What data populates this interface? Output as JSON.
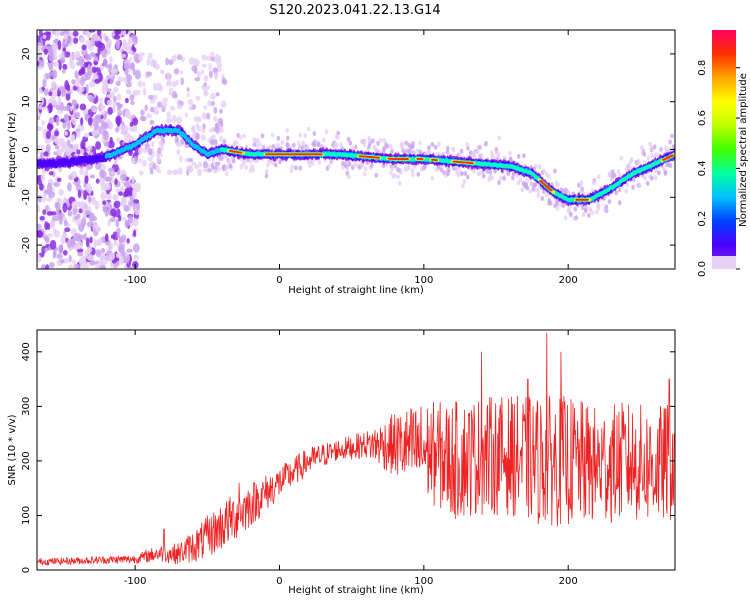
{
  "title": "S120.2023.041.22.13.G14",
  "chart_data": [
    {
      "type": "heatmap",
      "title": "S120.2023.041.22.13.G14",
      "xlabel": "Height of straight line (km)",
      "ylabel": "Frequency (Hz)",
      "xlim": [
        -168,
        274
      ],
      "ylim": [
        -25,
        25
      ],
      "x_ticks": [
        -100,
        0,
        100,
        200
      ],
      "y_ticks": [
        -20,
        -10,
        0,
        10,
        20
      ],
      "colorbar": {
        "label": "Normalized spectral amplitude",
        "range": [
          0,
          0.95
        ],
        "ticks": [
          0.0,
          0.2,
          0.4,
          0.6,
          0.8
        ],
        "colors": [
          "#e6d0f5",
          "#c9a3ee",
          "#8a2be2",
          "#4b00ff",
          "#0040ff",
          "#00c0ff",
          "#00ffc0",
          "#40ff00",
          "#c0ff00",
          "#ffff00",
          "#ffa500",
          "#ff3000",
          "#ff0060"
        ]
      },
      "ridge": [
        {
          "x": -160,
          "y": -3
        },
        {
          "x": -140,
          "y": -2.5
        },
        {
          "x": -120,
          "y": -1.5
        },
        {
          "x": -100,
          "y": 1
        },
        {
          "x": -85,
          "y": 4
        },
        {
          "x": -70,
          "y": 4
        },
        {
          "x": -60,
          "y": 1
        },
        {
          "x": -50,
          "y": -1
        },
        {
          "x": -40,
          "y": 0
        },
        {
          "x": -20,
          "y": -1
        },
        {
          "x": 0,
          "y": -1
        },
        {
          "x": 20,
          "y": -1
        },
        {
          "x": 40,
          "y": -1
        },
        {
          "x": 60,
          "y": -1.5
        },
        {
          "x": 80,
          "y": -2
        },
        {
          "x": 100,
          "y": -2
        },
        {
          "x": 120,
          "y": -2.5
        },
        {
          "x": 140,
          "y": -3
        },
        {
          "x": 160,
          "y": -3.5
        },
        {
          "x": 175,
          "y": -5
        },
        {
          "x": 190,
          "y": -9
        },
        {
          "x": 200,
          "y": -10.5
        },
        {
          "x": 215,
          "y": -10.5
        },
        {
          "x": 230,
          "y": -8
        },
        {
          "x": 245,
          "y": -5
        },
        {
          "x": 260,
          "y": -3
        },
        {
          "x": 274,
          "y": -1
        }
      ],
      "peak_amplitude_segments": [
        [
          -35,
          -25
        ],
        [
          -10,
          30
        ],
        [
          55,
          70
        ],
        [
          75,
          90
        ],
        [
          95,
          100
        ],
        [
          105,
          110
        ],
        [
          120,
          135
        ],
        [
          180,
          190
        ],
        [
          205,
          215
        ],
        [
          265,
          274
        ]
      ]
    },
    {
      "type": "line",
      "xlabel": "Height of straight line (km)",
      "ylabel": "SNR (10 * v/v)",
      "xlim": [
        -168,
        274
      ],
      "ylim": [
        0,
        440
      ],
      "x_ticks": [
        -100,
        0,
        100,
        200
      ],
      "y_ticks": [
        0,
        100,
        200,
        300,
        400
      ],
      "color": "#ee2222",
      "envelope": [
        {
          "x": -168,
          "mean": 15,
          "spread": 6
        },
        {
          "x": -100,
          "mean": 20,
          "spread": 8
        },
        {
          "x": -85,
          "mean": 30,
          "spread": 15
        },
        {
          "x": -70,
          "mean": 30,
          "spread": 20
        },
        {
          "x": -55,
          "mean": 50,
          "spread": 35
        },
        {
          "x": -40,
          "mean": 80,
          "spread": 45
        },
        {
          "x": -25,
          "mean": 110,
          "spread": 45
        },
        {
          "x": -10,
          "mean": 140,
          "spread": 35
        },
        {
          "x": 0,
          "mean": 160,
          "spread": 30
        },
        {
          "x": 20,
          "mean": 200,
          "spread": 25
        },
        {
          "x": 40,
          "mean": 220,
          "spread": 20
        },
        {
          "x": 60,
          "mean": 230,
          "spread": 25
        },
        {
          "x": 80,
          "mean": 230,
          "spread": 60
        },
        {
          "x": 100,
          "mean": 220,
          "spread": 90
        },
        {
          "x": 120,
          "mean": 200,
          "spread": 110
        },
        {
          "x": 140,
          "mean": 210,
          "spread": 110
        },
        {
          "x": 160,
          "mean": 210,
          "spread": 110
        },
        {
          "x": 180,
          "mean": 200,
          "spread": 120
        },
        {
          "x": 200,
          "mean": 200,
          "spread": 120
        },
        {
          "x": 220,
          "mean": 190,
          "spread": 110
        },
        {
          "x": 240,
          "mean": 200,
          "spread": 110
        },
        {
          "x": 260,
          "mean": 190,
          "spread": 110
        },
        {
          "x": 274,
          "mean": 200,
          "spread": 110
        }
      ],
      "peaks": [
        {
          "x": 185,
          "y": 435
        },
        {
          "x": 195,
          "y": 400
        },
        {
          "x": 140,
          "y": 400
        },
        {
          "x": 172,
          "y": 350
        },
        {
          "x": 270,
          "y": 350
        },
        {
          "x": -28,
          "y": 160
        },
        {
          "x": -50,
          "y": 100
        },
        {
          "x": -80,
          "y": 75
        }
      ]
    }
  ]
}
